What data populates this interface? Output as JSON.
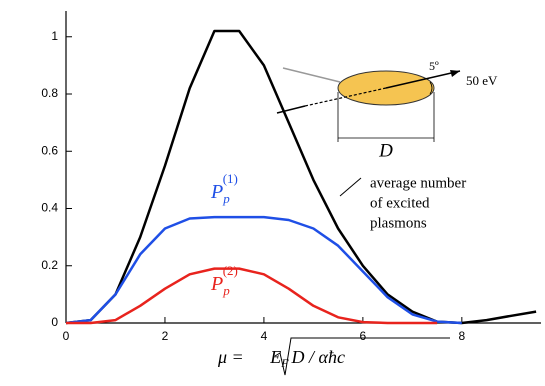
{
  "chart_data": {
    "type": "line",
    "x": [
      0,
      0.5,
      1,
      1.5,
      2,
      2.5,
      3,
      3.5,
      4,
      4.5,
      5,
      5.5,
      6,
      6.5,
      7,
      7.5,
      8,
      8.5,
      9,
      9.5
    ],
    "series": [
      {
        "color": "#000000",
        "values": [
          0,
          0.01,
          0.1,
          0.3,
          0.55,
          0.82,
          1.02,
          1.02,
          0.9,
          0.7,
          0.5,
          0.33,
          0.2,
          0.1,
          0.04,
          0.005,
          0,
          0.01,
          0.025,
          0.04
        ]
      },
      {
        "color": "#1f4fe6",
        "values": [
          0,
          0.01,
          0.1,
          0.24,
          0.33,
          0.365,
          0.37,
          0.37,
          0.37,
          0.36,
          0.33,
          0.27,
          0.18,
          0.09,
          0.03,
          0.005,
          0,
          null,
          null,
          null
        ],
        "label": {
          "main": "P",
          "sub": "p",
          "sup": "(1)"
        }
      },
      {
        "color": "#e8231d",
        "values": [
          0,
          0,
          0.01,
          0.06,
          0.12,
          0.17,
          0.19,
          0.19,
          0.17,
          0.12,
          0.06,
          0.02,
          0.003,
          0,
          0,
          0,
          null,
          null,
          null,
          null
        ],
        "label": {
          "main": "P",
          "sub": "p",
          "sup": "(2)"
        }
      }
    ],
    "annotation": [
      "average number",
      "of excited",
      "plasmons"
    ],
    "x_label": {
      "prefix": "μ = ",
      "main": "E",
      "sub": "F",
      "rest": "D / αħc"
    },
    "xlim": [
      0,
      9.6
    ],
    "ylim": [
      0,
      1.09
    ],
    "xticks": [
      0,
      2,
      4,
      6,
      8
    ],
    "yticks": [
      0,
      0.2,
      0.4,
      0.6,
      0.8,
      1
    ],
    "inset": {
      "angle": "5º",
      "energy": "50 eV",
      "diameter": "D"
    }
  }
}
